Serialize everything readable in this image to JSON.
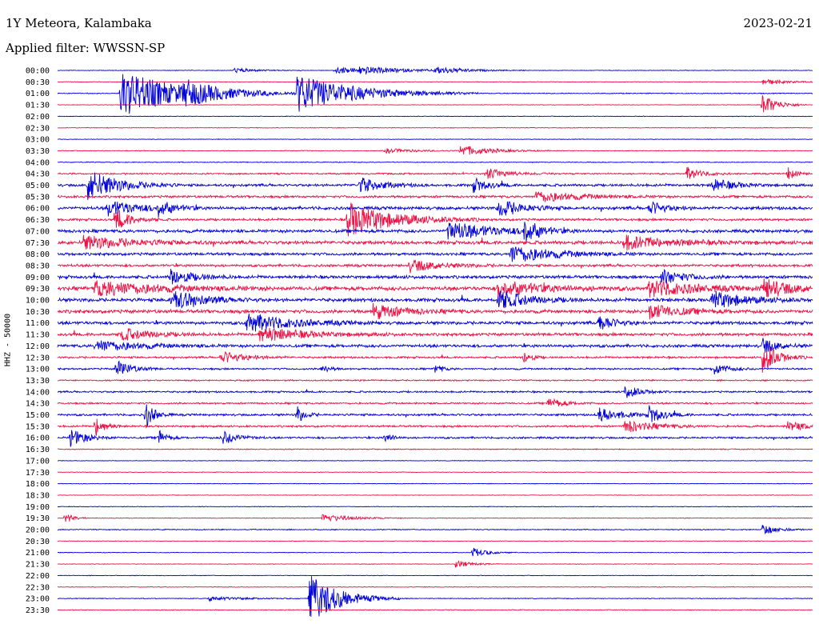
{
  "header": {
    "station": "1Y Meteora, Kalambaka",
    "date": "2023-02-21",
    "filter": "Applied filter: WWSSN-SP"
  },
  "colors": {
    "even_row": "#0000dd",
    "odd_row": "#ee1144"
  },
  "chart_data": {
    "type": "line",
    "title": "1Y Meteora, Kalambaka",
    "subtitle": "Applied filter: WWSSN-SP",
    "ylabel": "HHZ - 50000",
    "xlabel": "",
    "row_labels": [
      "00:00",
      "00:30",
      "01:00",
      "01:30",
      "02:00",
      "02:30",
      "03:00",
      "03:30",
      "04:00",
      "04:30",
      "05:00",
      "05:30",
      "06:00",
      "06:30",
      "07:00",
      "07:30",
      "08:00",
      "08:30",
      "09:00",
      "09:30",
      "10:00",
      "10:30",
      "11:00",
      "11:30",
      "12:00",
      "12:30",
      "13:00",
      "13:30",
      "14:00",
      "14:30",
      "15:00",
      "15:30",
      "16:00",
      "16:30",
      "17:00",
      "17:30",
      "18:00",
      "18:30",
      "19:00",
      "19:30",
      "20:00",
      "20:30",
      "21:00",
      "21:30",
      "22:00",
      "22:30",
      "23:00",
      "23:30"
    ],
    "noise_level": [
      0.3,
      0.3,
      0.5,
      0.3,
      0.3,
      0.3,
      0.3,
      0.4,
      0.4,
      0.8,
      1.3,
      1.2,
      1.6,
      1.2,
      1.6,
      1.8,
      1.4,
      1.3,
      1.6,
      2.0,
      1.8,
      1.8,
      1.6,
      1.5,
      1.5,
      1.0,
      0.9,
      0.7,
      0.9,
      0.9,
      1.1,
      1.0,
      1.0,
      0.5,
      0.3,
      0.3,
      0.3,
      0.3,
      0.3,
      0.3,
      0.5,
      0.3,
      0.3,
      0.3,
      0.3,
      0.3,
      0.4,
      0.4
    ],
    "events": [
      {
        "row": 0,
        "minute": 7,
        "amp": 3,
        "dur": 1.5
      },
      {
        "row": 0,
        "minute": 11,
        "amp": 4,
        "dur": 3
      },
      {
        "row": 0,
        "minute": 12,
        "amp": 3,
        "dur": 3
      },
      {
        "row": 0,
        "minute": 15,
        "amp": 4,
        "dur": 2
      },
      {
        "row": 1,
        "minute": 28,
        "amp": 4,
        "dur": 1.5
      },
      {
        "row": 2,
        "minute": 2.5,
        "amp": 30,
        "dur": 4
      },
      {
        "row": 2,
        "minute": 5,
        "amp": 10,
        "dur": 2
      },
      {
        "row": 2,
        "minute": 9.5,
        "amp": 24,
        "dur": 4
      },
      {
        "row": 3,
        "minute": 28,
        "amp": 14,
        "dur": 1
      },
      {
        "row": 7,
        "minute": 13,
        "amp": 3,
        "dur": 2
      },
      {
        "row": 7,
        "minute": 16,
        "amp": 7,
        "dur": 2
      },
      {
        "row": 9,
        "minute": 17,
        "amp": 7,
        "dur": 1.5
      },
      {
        "row": 9,
        "minute": 25,
        "amp": 8,
        "dur": 1
      },
      {
        "row": 9,
        "minute": 29,
        "amp": 9,
        "dur": 0.5
      },
      {
        "row": 10,
        "minute": 1.2,
        "amp": 20,
        "dur": 2
      },
      {
        "row": 10,
        "minute": 12,
        "amp": 10,
        "dur": 1.5
      },
      {
        "row": 10,
        "minute": 16.5,
        "amp": 9,
        "dur": 1
      },
      {
        "row": 10,
        "minute": 26,
        "amp": 8,
        "dur": 1.5
      },
      {
        "row": 11,
        "minute": 19,
        "amp": 7,
        "dur": 3
      },
      {
        "row": 12,
        "minute": 2,
        "amp": 10,
        "dur": 2
      },
      {
        "row": 12,
        "minute": 4,
        "amp": 9,
        "dur": 1
      },
      {
        "row": 12,
        "minute": 17.5,
        "amp": 12,
        "dur": 1.5
      },
      {
        "row": 12,
        "minute": 23.5,
        "amp": 9,
        "dur": 1
      },
      {
        "row": 13,
        "minute": 2.3,
        "amp": 14,
        "dur": 1
      },
      {
        "row": 13,
        "minute": 11.5,
        "amp": 22,
        "dur": 3
      },
      {
        "row": 14,
        "minute": 15.5,
        "amp": 12,
        "dur": 3
      },
      {
        "row": 14,
        "minute": 18.5,
        "amp": 16,
        "dur": 1
      },
      {
        "row": 15,
        "minute": 1,
        "amp": 9,
        "dur": 3
      },
      {
        "row": 15,
        "minute": 22.5,
        "amp": 9,
        "dur": 3
      },
      {
        "row": 16,
        "minute": 18,
        "amp": 11,
        "dur": 3
      },
      {
        "row": 17,
        "minute": 14,
        "amp": 8,
        "dur": 2
      },
      {
        "row": 18,
        "minute": 4.5,
        "amp": 10,
        "dur": 1.5
      },
      {
        "row": 18,
        "minute": 24,
        "amp": 9,
        "dur": 1.5
      },
      {
        "row": 19,
        "minute": 1.5,
        "amp": 10,
        "dur": 4
      },
      {
        "row": 19,
        "minute": 17.5,
        "amp": 10,
        "dur": 3
      },
      {
        "row": 19,
        "minute": 23.5,
        "amp": 11,
        "dur": 3
      },
      {
        "row": 19,
        "minute": 28,
        "amp": 12,
        "dur": 2
      },
      {
        "row": 20,
        "minute": 4.5,
        "amp": 13,
        "dur": 2
      },
      {
        "row": 20,
        "minute": 17.5,
        "amp": 12,
        "dur": 2
      },
      {
        "row": 20,
        "minute": 26,
        "amp": 12,
        "dur": 2
      },
      {
        "row": 21,
        "minute": 12.5,
        "amp": 10,
        "dur": 2
      },
      {
        "row": 21,
        "minute": 23.5,
        "amp": 10,
        "dur": 2
      },
      {
        "row": 22,
        "minute": 7.5,
        "amp": 12,
        "dur": 3
      },
      {
        "row": 22,
        "minute": 21.5,
        "amp": 11,
        "dur": 1
      },
      {
        "row": 23,
        "minute": 2.5,
        "amp": 8,
        "dur": 2
      },
      {
        "row": 23,
        "minute": 8,
        "amp": 9,
        "dur": 3
      },
      {
        "row": 24,
        "minute": 1.5,
        "amp": 7,
        "dur": 3
      },
      {
        "row": 24,
        "minute": 28,
        "amp": 10,
        "dur": 1
      },
      {
        "row": 25,
        "minute": 6.5,
        "amp": 8,
        "dur": 1.5
      },
      {
        "row": 25,
        "minute": 18.5,
        "amp": 9,
        "dur": 0.5
      },
      {
        "row": 25,
        "minute": 28,
        "amp": 20,
        "dur": 1
      },
      {
        "row": 26,
        "minute": 2.3,
        "amp": 12,
        "dur": 1
      },
      {
        "row": 26,
        "minute": 10.5,
        "amp": 6,
        "dur": 0.5
      },
      {
        "row": 26,
        "minute": 15,
        "amp": 6,
        "dur": 0.5
      },
      {
        "row": 26,
        "minute": 26,
        "amp": 8,
        "dur": 1
      },
      {
        "row": 28,
        "minute": 22.5,
        "amp": 9,
        "dur": 1
      },
      {
        "row": 29,
        "minute": 19.5,
        "amp": 7,
        "dur": 1
      },
      {
        "row": 30,
        "minute": 3.5,
        "amp": 16,
        "dur": 0.6
      },
      {
        "row": 30,
        "minute": 9.5,
        "amp": 12,
        "dur": 0.5
      },
      {
        "row": 30,
        "minute": 21.5,
        "amp": 9,
        "dur": 1.5
      },
      {
        "row": 30,
        "minute": 23.5,
        "amp": 10,
        "dur": 1
      },
      {
        "row": 31,
        "minute": 1.5,
        "amp": 14,
        "dur": 0.6
      },
      {
        "row": 31,
        "minute": 22.5,
        "amp": 8,
        "dur": 2
      },
      {
        "row": 31,
        "minute": 29,
        "amp": 6,
        "dur": 1.5
      },
      {
        "row": 32,
        "minute": 0.5,
        "amp": 12,
        "dur": 1
      },
      {
        "row": 32,
        "minute": 4,
        "amp": 10,
        "dur": 0.5
      },
      {
        "row": 32,
        "minute": 6.5,
        "amp": 10,
        "dur": 1
      },
      {
        "row": 32,
        "minute": 13,
        "amp": 7,
        "dur": 0.5
      },
      {
        "row": 39,
        "minute": 0.3,
        "amp": 8,
        "dur": 0.5
      },
      {
        "row": 39,
        "minute": 10.5,
        "amp": 5,
        "dur": 2
      },
      {
        "row": 40,
        "minute": 28,
        "amp": 7,
        "dur": 1
      },
      {
        "row": 42,
        "minute": 16.5,
        "amp": 6,
        "dur": 1
      },
      {
        "row": 43,
        "minute": 15.8,
        "amp": 5,
        "dur": 1
      },
      {
        "row": 46,
        "minute": 10,
        "amp": 32,
        "dur": 2
      },
      {
        "row": 46,
        "minute": 6,
        "amp": 3,
        "dur": 2
      }
    ]
  }
}
